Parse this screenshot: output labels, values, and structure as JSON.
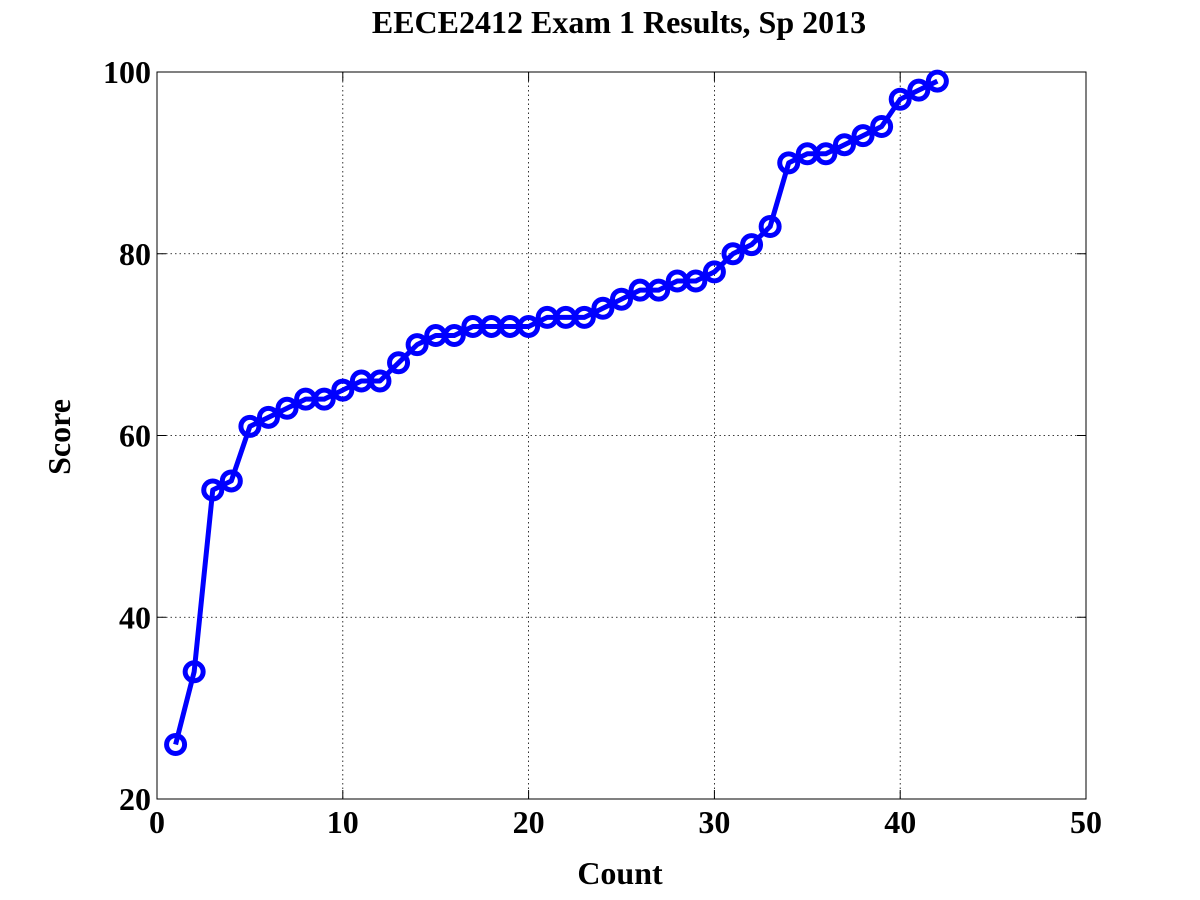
{
  "chart_data": {
    "type": "line",
    "title": "EECE2412 Exam 1 Results, Sp 2013",
    "xlabel": "Count",
    "ylabel": "Score",
    "xlim": [
      0,
      50
    ],
    "ylim": [
      20,
      100
    ],
    "xticks": [
      0,
      10,
      20,
      30,
      40,
      50
    ],
    "yticks": [
      20,
      40,
      60,
      80,
      100
    ],
    "grid": true,
    "marker": "circle",
    "series": [
      {
        "color": "#0000ff",
        "x": [
          1,
          2,
          3,
          4,
          5,
          6,
          7,
          8,
          9,
          10,
          11,
          12,
          13,
          14,
          15,
          16,
          17,
          18,
          19,
          20,
          21,
          22,
          23,
          24,
          25,
          26,
          27,
          28,
          29,
          30,
          31,
          32,
          33,
          34,
          35,
          36,
          37,
          38,
          39,
          40,
          41,
          42
        ],
        "y": [
          26,
          34,
          54,
          55,
          61,
          62,
          63,
          64,
          64,
          65,
          66,
          66,
          68,
          70,
          71,
          71,
          72,
          72,
          72,
          72,
          73,
          73,
          73,
          74,
          75,
          76,
          76,
          77,
          77,
          78,
          80,
          81,
          83,
          90,
          91,
          91,
          92,
          93,
          94,
          97,
          98,
          99
        ]
      }
    ]
  }
}
